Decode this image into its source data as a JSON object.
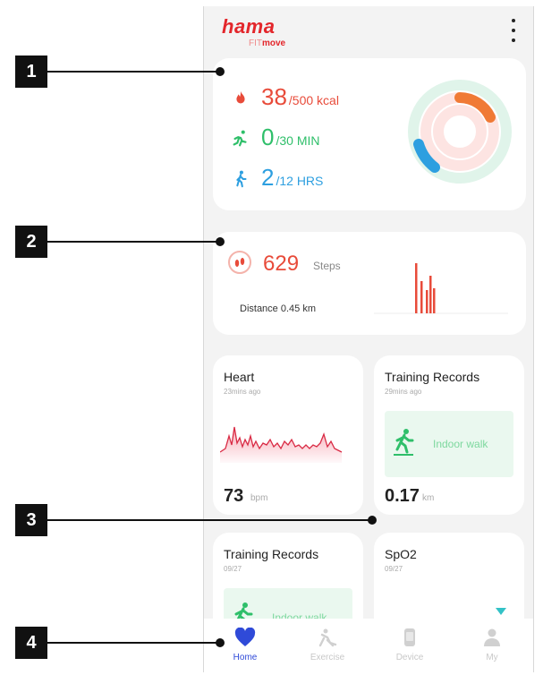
{
  "header": {
    "brand": "hama",
    "brand_sub_prefix": "FIT",
    "brand_sub": "move"
  },
  "activity": {
    "calories": {
      "value": "38",
      "goal": "/500 kcal",
      "icon": "flame-icon",
      "color": "#e84b3a"
    },
    "exercise": {
      "value": "0",
      "goal": "/30 MIN",
      "icon": "running-icon",
      "color": "#2fbf6a"
    },
    "standing": {
      "value": "2",
      "goal": "/12 HRS",
      "icon": "walking-icon",
      "color": "#2d9fe0"
    }
  },
  "steps": {
    "value": "629",
    "unit": "Steps",
    "distance": "Distance 0.45 km"
  },
  "heart": {
    "title": "Heart",
    "time": "23mins ago",
    "value": "73",
    "unit": "bpm"
  },
  "training1": {
    "title": "Training Records",
    "time": "29mins ago",
    "activity": "Indoor walk",
    "value": "0.17",
    "unit": "km"
  },
  "training2": {
    "title": "Training Records",
    "time": "09/27",
    "activity": "Indoor walk"
  },
  "spo2": {
    "title": "SpO2",
    "time": "09/27"
  },
  "tabs": [
    {
      "label": "Home",
      "icon": "heart-icon",
      "active": true
    },
    {
      "label": "Exercise",
      "icon": "exercise-icon",
      "active": false
    },
    {
      "label": "Device",
      "icon": "device-icon",
      "active": false
    },
    {
      "label": "My",
      "icon": "person-icon",
      "active": false
    }
  ],
  "callouts": [
    "1",
    "2",
    "3",
    "4"
  ],
  "colors": {
    "accent": "#e3262b",
    "active_tab": "#2f4ad8",
    "calories": "#e84b3a",
    "exercise": "#2fbf6a",
    "standing": "#2d9fe0"
  }
}
